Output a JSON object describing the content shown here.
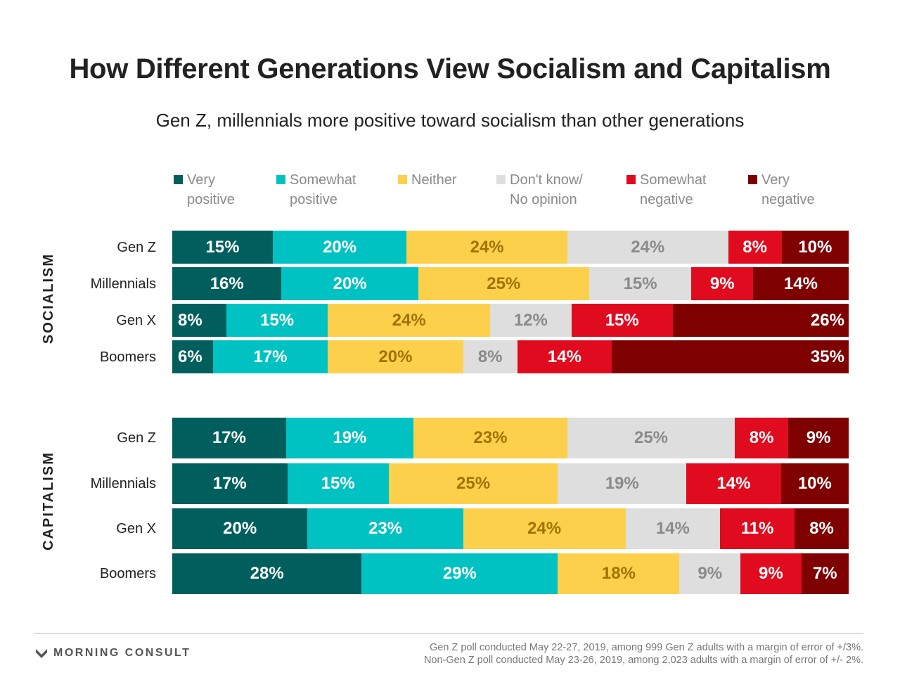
{
  "title": "How Different Generations View Socialism and Capitalism",
  "subtitle": "Gen Z, millennials more positive toward socialism than other generations",
  "chart_data": {
    "type": "bar",
    "orientation": "horizontal-stacked-100",
    "legend": [
      {
        "label": "Very\npositive",
        "color": "#005f5c"
      },
      {
        "label": "Somewhat\npositive",
        "color": "#00c2c2"
      },
      {
        "label": "Neither",
        "color": "#fcd04b"
      },
      {
        "label": "Don't know/\nNo opinion",
        "color": "#dedede"
      },
      {
        "label": "Somewhat\nnegative",
        "color": "#e00b1f"
      },
      {
        "label": "Very\nnegative",
        "color": "#7f0000"
      }
    ],
    "label_colors": [
      "#ffffff",
      "#ffffff",
      "#a07300",
      "#8a8a8a",
      "#ffffff",
      "#ffffff"
    ],
    "panels": [
      {
        "name": "SOCIALISM",
        "categories": [
          "Gen Z",
          "Millennials",
          "Gen X",
          "Boomers"
        ],
        "values": [
          [
            15,
            20,
            24,
            24,
            8,
            10
          ],
          [
            16,
            20,
            25,
            15,
            9,
            14
          ],
          [
            8,
            15,
            24,
            12,
            15,
            26
          ],
          [
            6,
            17,
            20,
            8,
            14,
            35
          ]
        ]
      },
      {
        "name": "CAPITALISM",
        "categories": [
          "Gen Z",
          "Millennials",
          "Gen X",
          "Boomers"
        ],
        "values": [
          [
            17,
            19,
            23,
            25,
            8,
            9
          ],
          [
            17,
            15,
            25,
            19,
            14,
            10
          ],
          [
            20,
            23,
            24,
            14,
            11,
            8
          ],
          [
            28,
            29,
            18,
            9,
            9,
            7
          ]
        ]
      }
    ]
  },
  "footer": {
    "brand": "MORNING CONSULT",
    "note_line1": "Gen Z poll conducted May 22-27, 2019, among 999 Gen Z adults with a margin of error of +/3%.",
    "note_line2": "Non-Gen Z poll conducted May 23-26, 2019, among 2,023 adults with a margin of error of +/- 2%."
  }
}
